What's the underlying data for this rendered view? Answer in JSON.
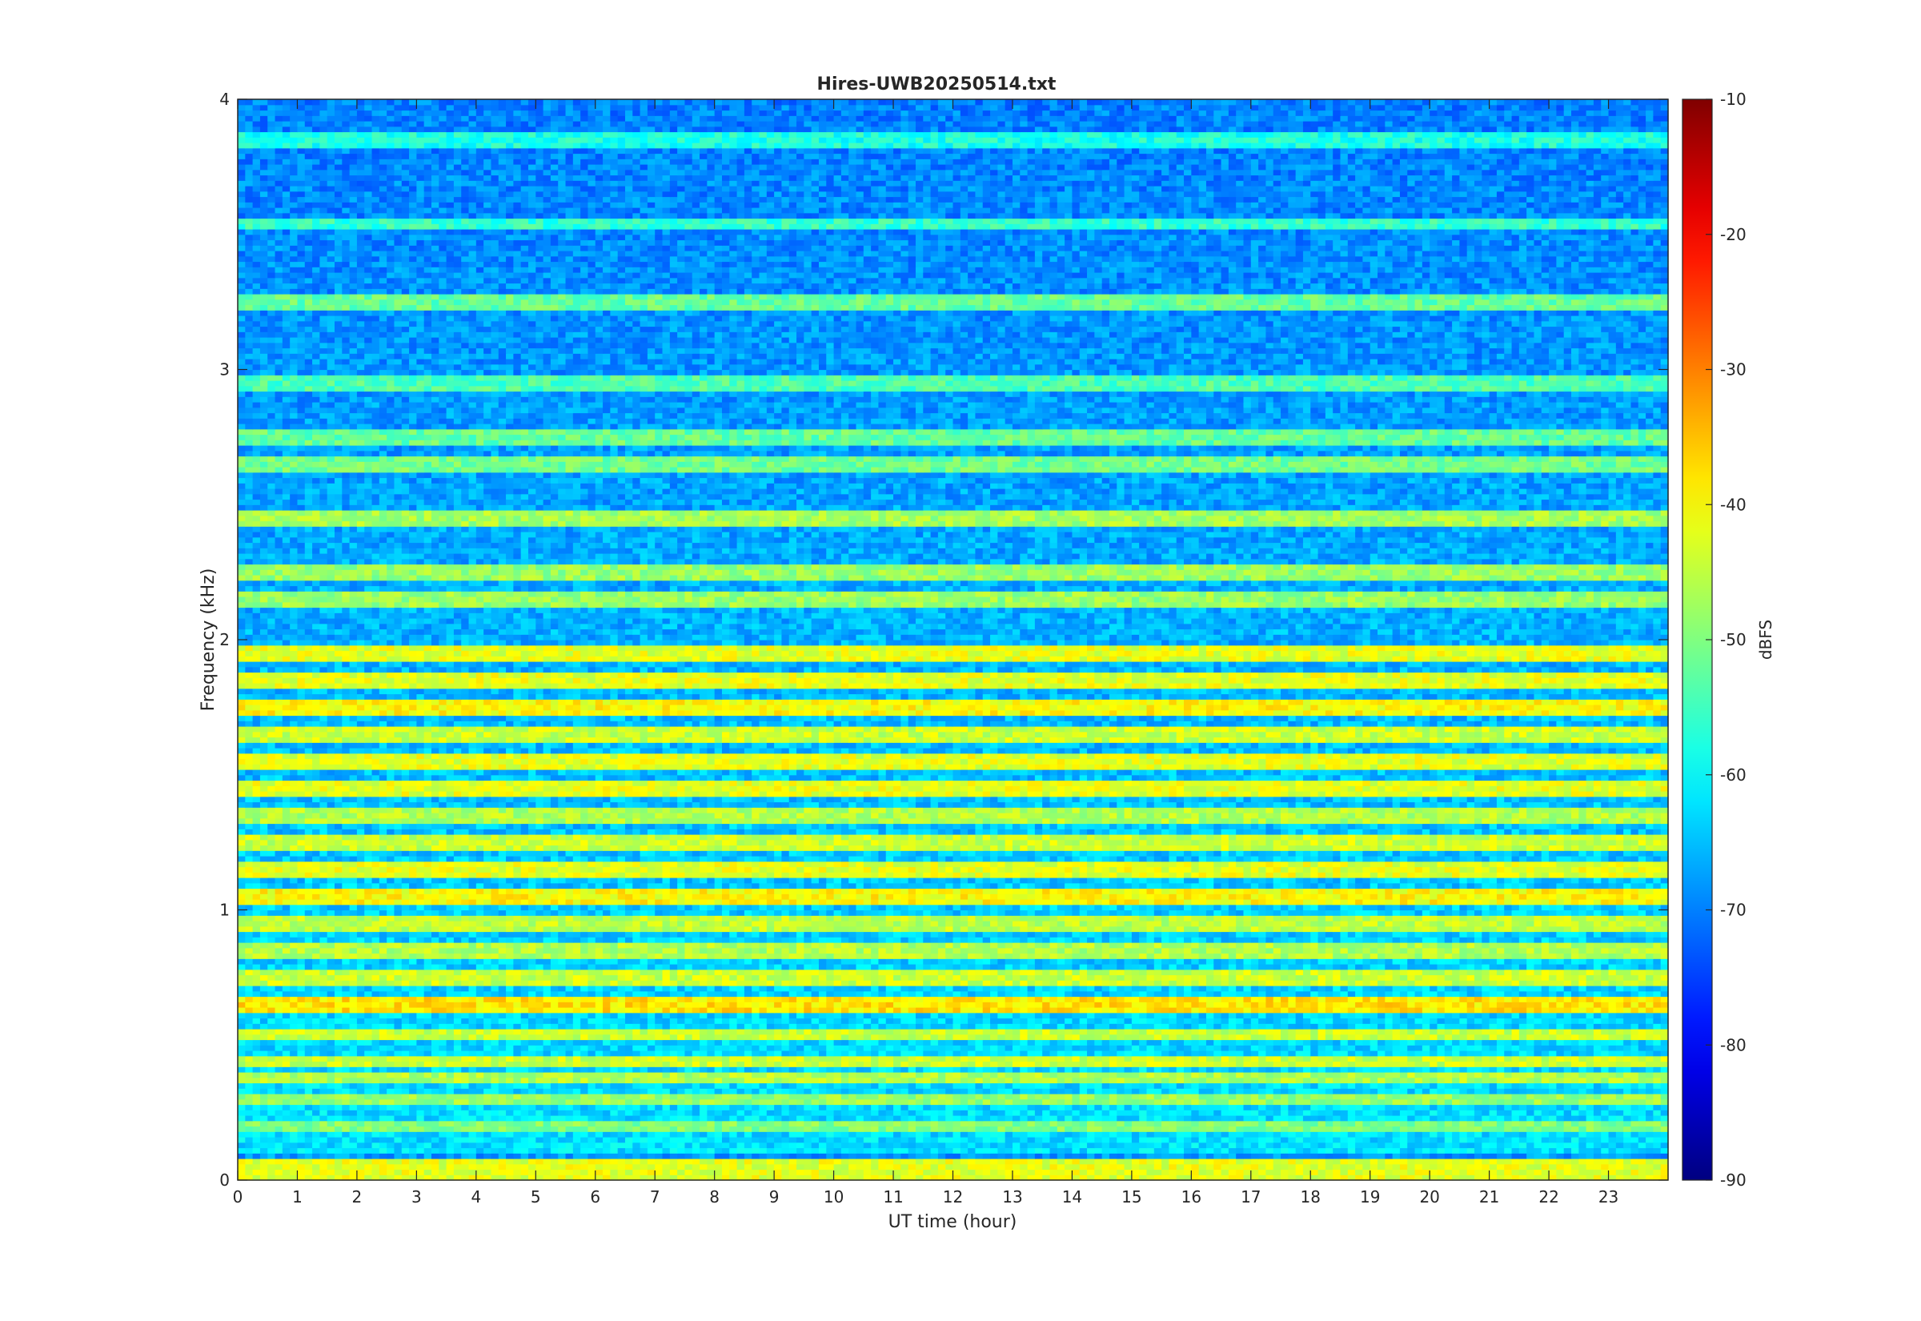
{
  "chart_data": {
    "type": "heatmap",
    "title": "Hires-UWB20250514.txt",
    "xlabel": "UT time (hour)",
    "ylabel": "Frequency (kHz)",
    "colorbar_label": "dBFS",
    "xlim": [
      0,
      24
    ],
    "ylim": [
      0,
      4
    ],
    "clim": [
      -90,
      -10
    ],
    "colormap": "jet",
    "x_ticks": [
      "0",
      "1",
      "2",
      "3",
      "4",
      "5",
      "6",
      "7",
      "8",
      "9",
      "10",
      "11",
      "12",
      "13",
      "14",
      "15",
      "16",
      "17",
      "18",
      "19",
      "20",
      "21",
      "22",
      "23"
    ],
    "y_ticks": [
      "0",
      "1",
      "2",
      "3",
      "4"
    ],
    "colorbar_ticks": [
      "-90",
      "-80",
      "-70",
      "-60",
      "-50",
      "-40",
      "-30",
      "-20",
      "-10"
    ],
    "band_levels_dBFS": [
      {
        "freq_khz": [
          0.01,
          0.09
        ],
        "level": -42
      },
      {
        "freq_khz": [
          0.09,
          0.1
        ],
        "level": -68
      },
      {
        "freq_khz": [
          0.18,
          0.22
        ],
        "level": -50
      },
      {
        "freq_khz": [
          0.28,
          0.32
        ],
        "level": -48
      },
      {
        "freq_khz": [
          0.36,
          0.4
        ],
        "level": -46
      },
      {
        "freq_khz": [
          0.43,
          0.47
        ],
        "level": -44
      },
      {
        "freq_khz": [
          0.53,
          0.57
        ],
        "level": -44
      },
      {
        "freq_khz": [
          0.63,
          0.68
        ],
        "level": -38
      },
      {
        "freq_khz": [
          0.73,
          0.77
        ],
        "level": -44
      },
      {
        "freq_khz": [
          0.83,
          0.87
        ],
        "level": -46
      },
      {
        "freq_khz": [
          0.93,
          0.97
        ],
        "level": -45
      },
      {
        "freq_khz": [
          1.03,
          1.07
        ],
        "level": -40
      },
      {
        "freq_khz": [
          1.13,
          1.17
        ],
        "level": -42
      },
      {
        "freq_khz": [
          1.23,
          1.27
        ],
        "level": -44
      },
      {
        "freq_khz": [
          1.33,
          1.37
        ],
        "level": -46
      },
      {
        "freq_khz": [
          1.43,
          1.47
        ],
        "level": -42
      },
      {
        "freq_khz": [
          1.53,
          1.57
        ],
        "level": -42
      },
      {
        "freq_khz": [
          1.63,
          1.67
        ],
        "level": -44
      },
      {
        "freq_khz": [
          1.73,
          1.77
        ],
        "level": -40
      },
      {
        "freq_khz": [
          1.83,
          1.87
        ],
        "level": -42
      },
      {
        "freq_khz": [
          1.93,
          1.97
        ],
        "level": -42
      },
      {
        "freq_khz": [
          2.13,
          2.17
        ],
        "level": -48
      },
      {
        "freq_khz": [
          2.23,
          2.27
        ],
        "level": -48
      },
      {
        "freq_khz": [
          2.43,
          2.47
        ],
        "level": -47
      },
      {
        "freq_khz": [
          2.63,
          2.67
        ],
        "level": -51
      },
      {
        "freq_khz": [
          2.73,
          2.77
        ],
        "level": -52
      },
      {
        "freq_khz": [
          2.93,
          2.97
        ],
        "level": -54
      },
      {
        "freq_khz": [
          3.23,
          3.27
        ],
        "level": -52
      },
      {
        "freq_khz": [
          3.53,
          3.57
        ],
        "level": -56
      },
      {
        "freq_khz": [
          3.83,
          3.87
        ],
        "level": -58
      }
    ]
  }
}
